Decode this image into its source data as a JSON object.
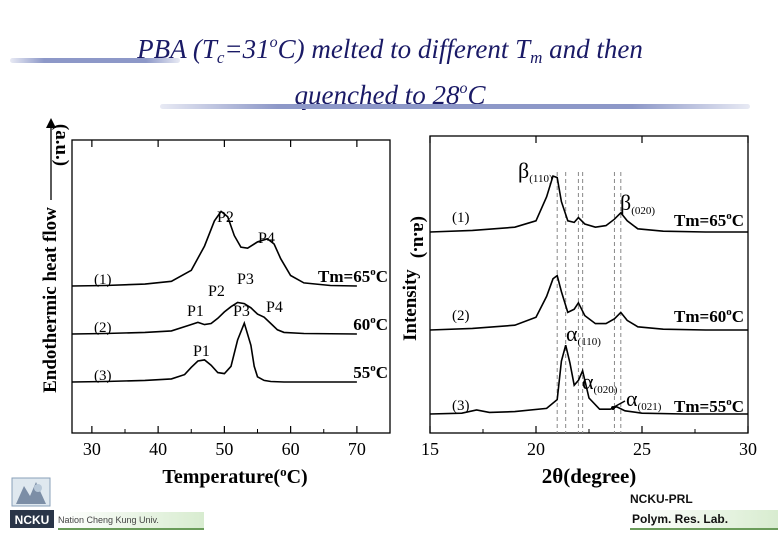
{
  "title": {
    "line1_a": "PBA (T",
    "line1_sub": "c",
    "line1_b": "=31",
    "line1_sup": "o",
    "line1_c": "C) melted to different T",
    "line1_sub2": "m",
    "line1_d": " and then",
    "line2_a": "quenched to 28",
    "line2_sup": "o",
    "line2_b": "C"
  },
  "footer": {
    "left_text": "Nation Cheng Kung Univ.",
    "logo_text": "NCKU",
    "right_line1": "NCKU-PRL",
    "right_line2": "Polym. Res. Lab."
  },
  "colors": {
    "title": "#1a1a66",
    "curve": "#000000",
    "axis": "#000000"
  },
  "chart_data": [
    {
      "type": "line",
      "xlabel": "Temperature(oC)",
      "ylabel": "Endothermic heat flow",
      "ylabel_arrow_text": "Endothermic heat flow (a.u.)",
      "xlim": [
        27,
        75
      ],
      "xticks": [
        30,
        40,
        50,
        60,
        70
      ],
      "series": [
        {
          "name": "(1)",
          "tm_label": "Tm=65oC",
          "x": [
            27,
            32,
            38,
            42,
            45,
            47,
            48.5,
            49.5,
            50.5,
            51.5,
            52.5,
            53.5,
            55,
            56.5,
            57.5,
            58.5,
            60,
            62,
            66,
            70
          ],
          "y": [
            0.0,
            0.05,
            0.18,
            0.45,
            1.5,
            3.8,
            6.2,
            7.1,
            6.6,
            4.8,
            3.7,
            3.6,
            4.2,
            4.5,
            4.0,
            2.6,
            1.0,
            0.3,
            0.05,
            0.0
          ]
        },
        {
          "name": "(2)",
          "tm_label": "60oC",
          "x": [
            27,
            32,
            38,
            42,
            44.5,
            46,
            47,
            48,
            49,
            50,
            51,
            52,
            53,
            54,
            55,
            56,
            57,
            58,
            59,
            62,
            70
          ],
          "y": [
            0.0,
            0.05,
            0.15,
            0.3,
            0.8,
            1.1,
            0.9,
            1.0,
            1.5,
            2.1,
            2.6,
            3.0,
            2.9,
            2.5,
            1.9,
            1.6,
            1.0,
            0.4,
            0.15,
            0.05,
            0.0
          ]
        },
        {
          "name": "(3)",
          "tm_label": "55oC",
          "x": [
            27,
            32,
            38,
            42,
            44,
            45,
            46,
            47,
            48,
            49,
            50,
            51,
            52,
            53,
            54,
            54.5,
            55,
            56,
            57,
            59,
            62,
            70
          ],
          "y": [
            0.0,
            0.05,
            0.15,
            0.3,
            0.7,
            1.4,
            2.0,
            2.1,
            1.6,
            0.9,
            0.8,
            1.5,
            4.0,
            5.6,
            3.5,
            1.5,
            0.5,
            0.15,
            0.05,
            0.0,
            0.0,
            0.0
          ]
        }
      ],
      "peak_labels": [
        {
          "text": "P2",
          "series": 0,
          "x": 50.6
        },
        {
          "text": "P4",
          "series": 0,
          "x": 56.4
        },
        {
          "text": "P1",
          "series": 1,
          "x": 46.0
        },
        {
          "text": "P2",
          "series": 1,
          "x": 50.0
        },
        {
          "text": "P3",
          "series": 1,
          "x": 53.0
        },
        {
          "text": "P3",
          "series": 1,
          "x": 53.0
        },
        {
          "text": "P4",
          "series": 1,
          "x": 56.5
        },
        {
          "text": "P1",
          "series": 2,
          "x": 46.8
        }
      ]
    },
    {
      "type": "line",
      "xlabel": "2θ(degree)",
      "ylabel": "Intensity",
      "ylabel_suffix": "(a.u.)",
      "xlim": [
        15,
        30
      ],
      "xticks": [
        15,
        20,
        25,
        30
      ],
      "series": [
        {
          "name": "(1)",
          "tm_label": "Tm=65oC",
          "x": [
            15,
            17,
            19,
            20,
            20.5,
            20.8,
            21.0,
            21.2,
            21.5,
            21.8,
            22.0,
            22.3,
            22.8,
            23.3,
            23.7,
            24.0,
            24.3,
            24.8,
            26,
            28,
            30
          ],
          "y": [
            0.0,
            0.1,
            0.3,
            0.7,
            2.2,
            3.5,
            3.4,
            1.9,
            0.7,
            0.6,
            0.9,
            0.5,
            0.3,
            0.4,
            0.8,
            1.2,
            0.7,
            0.2,
            0.05,
            0.0,
            0.0
          ]
        },
        {
          "name": "(2)",
          "tm_label": "Tm=60oC",
          "x": [
            15,
            17,
            19,
            20,
            20.5,
            20.8,
            21.0,
            21.2,
            21.5,
            21.8,
            22.0,
            22.3,
            22.8,
            23.3,
            23.7,
            24.0,
            24.3,
            24.8,
            26,
            28,
            30
          ],
          "y": [
            0.0,
            0.1,
            0.3,
            0.8,
            2.1,
            3.2,
            3.4,
            2.4,
            1.1,
            1.3,
            1.7,
            0.9,
            0.4,
            0.4,
            0.7,
            1.1,
            0.6,
            0.2,
            0.05,
            0.0,
            0.0
          ]
        },
        {
          "name": "(3)",
          "tm_label": "Tm=55oC",
          "x": [
            15,
            16.5,
            17.2,
            17.8,
            19,
            20.5,
            21.0,
            21.2,
            21.4,
            21.6,
            21.8,
            22.0,
            22.2,
            22.5,
            23.0,
            23.5,
            23.8,
            24.2,
            25,
            27,
            30
          ],
          "y": [
            0.0,
            0.05,
            0.25,
            0.1,
            0.15,
            0.35,
            0.9,
            3.3,
            4.3,
            3.2,
            1.8,
            2.1,
            2.7,
            1.0,
            0.3,
            0.3,
            0.45,
            0.2,
            0.05,
            0.0,
            0.0
          ]
        }
      ],
      "reference_lines": [
        21.0,
        22.0,
        21.4,
        22.2,
        23.7,
        24.0
      ],
      "peak_labels": [
        {
          "sym": "β",
          "sub": "(110)",
          "series": 0
        },
        {
          "sym": "β",
          "sub": "(020)",
          "series": 0
        },
        {
          "sym": "α",
          "sub": "(110)",
          "series": 2
        },
        {
          "sym": "α",
          "sub": "(020)",
          "series": 2
        },
        {
          "sym": "α",
          "sub": "(021)",
          "series": 2
        }
      ]
    }
  ]
}
